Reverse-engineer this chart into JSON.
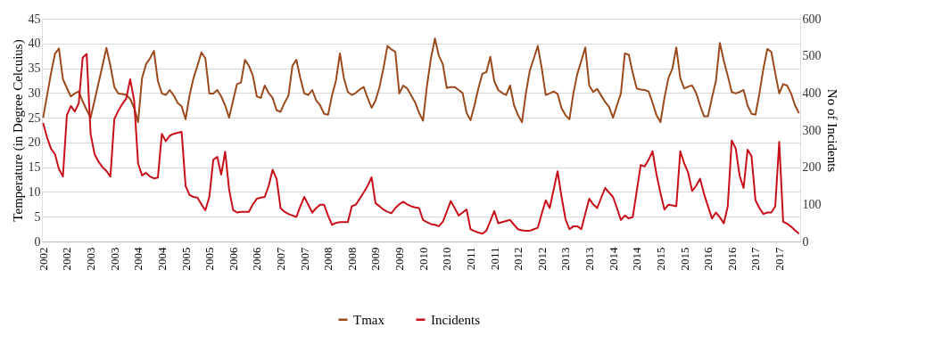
{
  "chart_data": {
    "type": "line",
    "ylabel": "Temperature (in Degree Celcuius)",
    "y2label": "No of Incidents",
    "categories": [
      "2002",
      null,
      null,
      null,
      null,
      null,
      "2002",
      null,
      null,
      null,
      null,
      null,
      "2003",
      null,
      null,
      null,
      null,
      null,
      "2003",
      null,
      null,
      null,
      null,
      null,
      "2004",
      null,
      null,
      null,
      null,
      null,
      "2004",
      null,
      null,
      null,
      null,
      null,
      "2005",
      null,
      null,
      null,
      null,
      null,
      "2005",
      null,
      null,
      null,
      null,
      null,
      "2006",
      null,
      null,
      null,
      null,
      null,
      "2006",
      null,
      null,
      null,
      null,
      null,
      "2007",
      null,
      null,
      null,
      null,
      null,
      "2007",
      null,
      null,
      null,
      null,
      null,
      "2008",
      null,
      null,
      null,
      null,
      null,
      "2008",
      null,
      null,
      null,
      null,
      null,
      "2009",
      null,
      null,
      null,
      null,
      null,
      "2009",
      null,
      null,
      null,
      null,
      null,
      "2010",
      null,
      null,
      null,
      null,
      null,
      "2010",
      null,
      null,
      null,
      null,
      null,
      "2011",
      null,
      null,
      null,
      null,
      null,
      "2011",
      null,
      null,
      null,
      null,
      null,
      "2012",
      null,
      null,
      null,
      null,
      null,
      "2012",
      null,
      null,
      null,
      null,
      null,
      "2013",
      null,
      null,
      null,
      null,
      null,
      "2013",
      null,
      null,
      null,
      null,
      null,
      "2014",
      null,
      null,
      null,
      null,
      null,
      "2014",
      null,
      null,
      null,
      null,
      null,
      "2015",
      null,
      null,
      null,
      null,
      null,
      "2015",
      null,
      null,
      null,
      null,
      null,
      "2016",
      null,
      null,
      null,
      null,
      null,
      "2016",
      null,
      null,
      null,
      null,
      null,
      "2017",
      null,
      null,
      null,
      null,
      null,
      "2017",
      null,
      null,
      null,
      null,
      null
    ],
    "series": [
      {
        "name": "Tmax",
        "color": "#9a4a1c",
        "values": [
          25.0,
          29.5,
          34,
          37.9,
          39.0,
          32.8,
          31.0,
          29.3,
          29.9,
          30.3,
          28.3,
          26.6,
          25.0,
          28.5,
          32,
          35.5,
          39.1,
          35.5,
          31.2,
          29.9,
          29.8,
          29.6,
          28.8,
          27,
          24.1,
          33,
          35.8,
          37,
          38.5,
          32.4,
          29.9,
          29.6,
          30.6,
          29.5,
          28,
          27.3,
          24.7,
          29.5,
          33,
          35.5,
          38.2,
          37,
          29.9,
          29.9,
          30.6,
          29.3,
          27.5,
          25,
          28.5,
          31.8,
          32.1,
          36.7,
          35.5,
          33.5,
          29.3,
          29,
          31.5,
          30,
          29,
          26.5,
          26.2,
          28,
          29.5,
          35.5,
          36.7,
          33,
          29.9,
          29.6,
          30.6,
          28.5,
          27.5,
          25.8,
          25.6,
          29.5,
          32.5,
          38,
          33,
          30.2,
          29.6,
          30,
          30.7,
          31.2,
          29,
          27,
          28.5,
          31.2,
          35,
          39.5,
          38.8,
          38.3,
          29.9,
          31.5,
          30.9,
          29.5,
          28.1,
          26,
          24.4,
          31.5,
          37,
          41,
          37.5,
          35.8,
          31,
          31.2,
          31.2,
          30.6,
          30,
          26,
          24.5,
          27.5,
          31,
          33.9,
          34.2,
          37.3,
          32.4,
          30.6,
          30,
          29.6,
          31.5,
          27.5,
          25.5,
          24.1,
          30,
          34.6,
          37,
          39.5,
          35,
          29.6,
          29.9,
          30.3,
          29.8,
          26.9,
          25.5,
          24.7,
          30,
          33.9,
          36.5,
          39.2,
          31.5,
          30.2,
          30.8,
          29.5,
          28.2,
          27.2,
          25,
          27.5,
          29.9,
          38,
          37.7,
          34,
          30.9,
          30.7,
          30.6,
          30.3,
          28,
          25.5,
          24.1,
          29,
          33,
          34.9,
          39.2,
          33,
          30.9,
          31.3,
          31.5,
          30,
          27.5,
          25.3,
          25.3,
          29,
          32.4,
          40.1,
          36.5,
          33.5,
          30.2,
          29.9,
          30.2,
          30.6,
          27.5,
          25.8,
          25.6,
          29.9,
          34.9,
          38.9,
          38.3,
          34,
          29.9,
          31.8,
          31.5,
          29.9,
          27.5,
          25.9
        ]
      },
      {
        "name": "Incidents",
        "color": "#c8101a",
        "axis": "y2",
        "values": [
          319,
          280,
          250,
          235,
          195,
          175,
          340,
          365,
          350,
          372,
          495,
          505,
          290,
          235,
          215,
          200,
          190,
          175,
          330,
          352,
          370,
          385,
          437,
          380,
          210,
          178,
          185,
          175,
          170,
          172,
          290,
          270,
          285,
          290,
          293,
          295,
          150,
          125,
          120,
          118,
          100,
          84,
          120,
          220,
          228,
          180,
          242,
          140,
          85,
          78,
          80,
          80,
          80,
          100,
          115,
          118,
          120,
          150,
          193,
          169,
          90,
          80,
          74,
          70,
          66,
          95,
          120,
          99,
          78,
          90,
          99,
          99,
          70,
          45,
          50,
          52,
          52,
          52,
          95,
          99,
          115,
          132,
          150,
          173,
          103,
          95,
          86,
          80,
          76,
          90,
          100,
          107,
          100,
          95,
          92,
          90,
          58,
          52,
          47,
          45,
          41,
          53,
          80,
          109,
          90,
          70,
          78,
          86,
          33,
          28,
          24,
          21,
          29,
          55,
          82,
          49,
          52,
          55,
          58,
          45,
          33,
          30,
          29,
          29,
          33,
          37,
          75,
          111,
          90,
          140,
          189,
          120,
          60,
          33,
          41,
          41,
          33,
          75,
          115,
          100,
          90,
          117,
          144,
          132,
          120,
          90,
          58,
          70,
          62,
          66,
          136,
          206,
          202,
          220,
          243,
          180,
          130,
          86,
          99,
          97,
          95,
          243,
          210,
          185,
          136,
          150,
          169,
          128,
          95,
          62,
          78,
          65,
          49,
          95,
          272,
          251,
          177,
          144,
          247,
          230,
          111,
          90,
          74,
          78,
          78,
          95,
          268,
          53,
          48,
          40,
          30,
          21
        ]
      }
    ],
    "ylim": [
      0,
      45
    ],
    "yticks": [
      0,
      5,
      10,
      15,
      20,
      25,
      30,
      35,
      40,
      45
    ],
    "y2lim": [
      0,
      600
    ],
    "y2ticks": [
      0,
      100,
      200,
      300,
      400,
      500,
      600
    ],
    "grid": "y",
    "legend": "bottom",
    "marker": "none",
    "line_style": "solid"
  }
}
